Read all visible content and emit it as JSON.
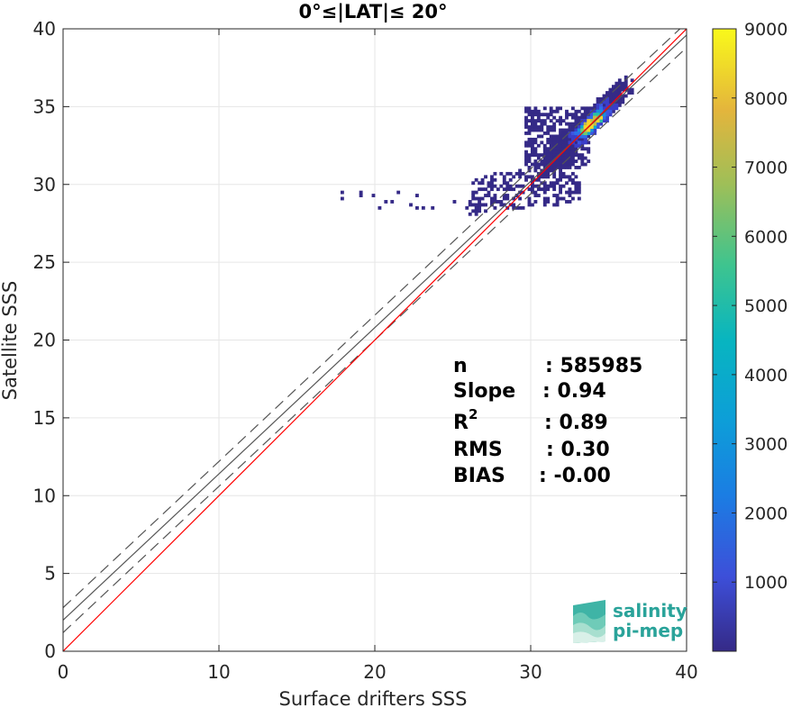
{
  "chart_data": {
    "type": "heatmap",
    "title": "0°≤|LAT|≤ 20°",
    "xlabel": "Surface drifters SSS",
    "ylabel": "Satellite SSS",
    "xlim": [
      0,
      40
    ],
    "ylim": [
      0,
      40
    ],
    "xticks": [
      "0",
      "10",
      "20",
      "30",
      "40"
    ],
    "yticks": [
      "0",
      "5",
      "10",
      "15",
      "20",
      "25",
      "30",
      "35",
      "40"
    ],
    "grid": true,
    "colormap": "parula",
    "colorbar": {
      "range": [
        0,
        9000
      ],
      "ticks": [
        "1000",
        "2000",
        "3000",
        "4000",
        "5000",
        "6000",
        "7000",
        "8000",
        "9000"
      ]
    },
    "lines": {
      "identity": {
        "slope": 1.0,
        "intercept": 0.0,
        "color": "#ff0000"
      },
      "fit": {
        "slope": 0.94,
        "intercept": 2.0,
        "color": "#555555"
      },
      "fit_upper": {
        "slope": 0.94,
        "intercept": 2.8,
        "color": "#555555",
        "style": "dashed"
      },
      "fit_lower": {
        "slope": 0.94,
        "intercept": 1.2,
        "color": "#555555",
        "style": "dashed"
      }
    },
    "density_core": {
      "x": [
        31,
        37
      ],
      "y": [
        30,
        37
      ],
      "peak": [
        33.8,
        33.8
      ]
    },
    "stats": [
      {
        "label": "n",
        "value": ": 585985"
      },
      {
        "label": "Slope",
        "value": ": 0.94"
      },
      {
        "label": "R",
        "sup": "2",
        "value": ": 0.89"
      },
      {
        "label": "RMS",
        "value": ": 0.30"
      },
      {
        "label": "BIAS",
        "value": ": -0.00"
      }
    ]
  },
  "logo": {
    "line1": "salinity",
    "line2": "pi-mep",
    "color": "#2aa39a"
  }
}
